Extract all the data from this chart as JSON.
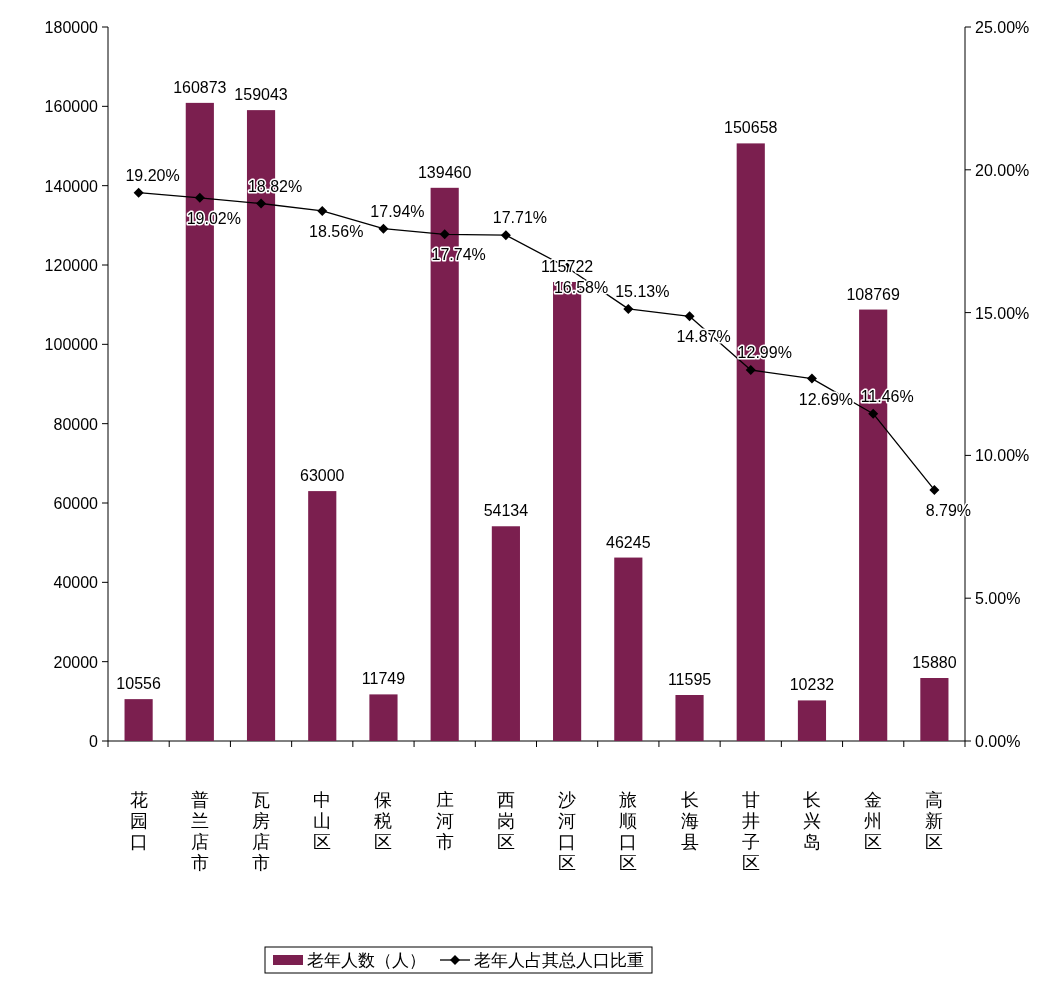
{
  "chart_data": {
    "type": "bar",
    "categories": [
      "花园口",
      "普兰店市",
      "瓦房店市",
      "中山区",
      "保税区",
      "庄河市",
      "西岗区",
      "沙河口区",
      "旅顺口区",
      "长海县",
      "甘井子区",
      "长兴岛",
      "金州区",
      "高新区"
    ],
    "series": [
      {
        "name": "老年人数（人）",
        "color": "#7b1f4f",
        "values": [
          10556,
          160873,
          159043,
          63000,
          11749,
          139460,
          54134,
          115722,
          46245,
          11595,
          150658,
          10232,
          108769,
          15880
        ],
        "data_labels": true
      },
      {
        "name": "老年人占其总人口比重",
        "type": "line",
        "axis": "y2",
        "color": "#000000",
        "marker": "diamond",
        "values": [
          19.2,
          19.02,
          18.82,
          18.56,
          17.94,
          17.74,
          17.71,
          16.58,
          15.13,
          14.87,
          12.99,
          12.69,
          11.46,
          8.79
        ],
        "value_labels": [
          "19.20%",
          "19.02%",
          "18.82%",
          "18.56%",
          "17.94%",
          "17.74%",
          "17.71%",
          "16.58%",
          "15.13%",
          "14.87%",
          "12.99%",
          "12.69%",
          "11.46%",
          "8.79%"
        ]
      }
    ],
    "ylim": [
      0,
      180000
    ],
    "yticks": [
      0,
      20000,
      40000,
      60000,
      80000,
      100000,
      120000,
      140000,
      160000,
      180000
    ],
    "y2lim": [
      0,
      25
    ],
    "y2ticks": [
      {
        "value": 0,
        "label": "0.00%"
      },
      {
        "value": 5,
        "label": "5.00%"
      },
      {
        "value": 10,
        "label": "10.00%"
      },
      {
        "value": 15,
        "label": "15.00%"
      },
      {
        "value": 20,
        "label": "20.00%"
      },
      {
        "value": 25,
        "label": "25.00%"
      }
    ],
    "grid": false,
    "legend": "bottom"
  }
}
